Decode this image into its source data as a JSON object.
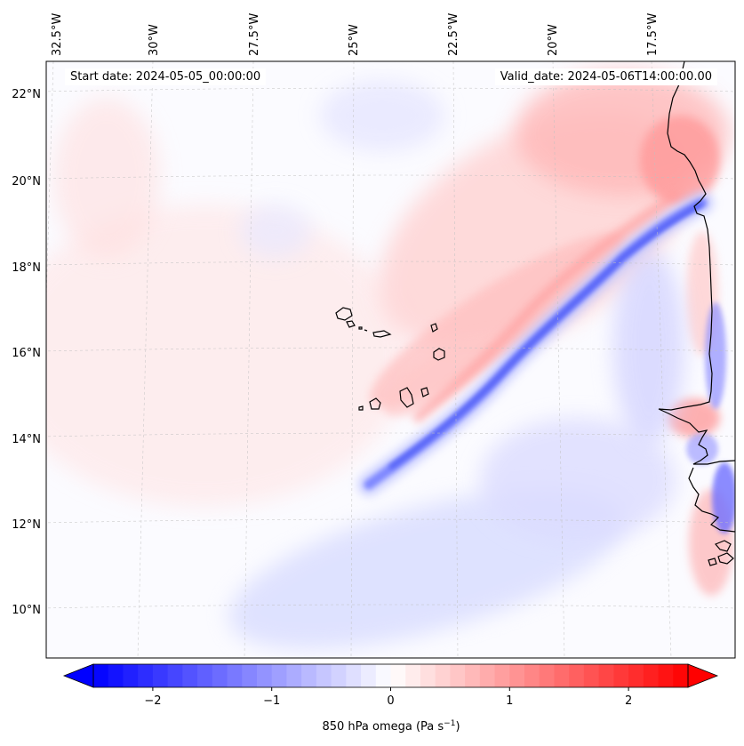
{
  "map": {
    "start_label": "Start date: 2024-05-05_00:00:00",
    "valid_label": "Valid_date: 2024-05-06T14:00:00.00",
    "lon_labels": [
      "32.5°W",
      "30°W",
      "27.5°W",
      "25°W",
      "22.5°W",
      "20°W",
      "17.5°W"
    ],
    "lat_labels": [
      "22°N",
      "20°N",
      "18°N",
      "16°N",
      "14°N",
      "12°N",
      "10°N"
    ],
    "field": "850 hPa omega",
    "islands": "Cabo Verde",
    "colors": {
      "negative": "#0000ff",
      "positive": "#ff0000",
      "neutral": "#ffffff"
    }
  },
  "colorbar": {
    "label_main": "850 hPa omega (Pa s",
    "label_exp": "−1",
    "label_end": ")",
    "ticks": [
      {
        "value": -2,
        "label": "−2"
      },
      {
        "value": -1,
        "label": "−1"
      },
      {
        "value": 0,
        "label": "0"
      },
      {
        "value": 1,
        "label": "1"
      },
      {
        "value": 2,
        "label": "2"
      }
    ],
    "range": [
      -2.5,
      2.5
    ],
    "extend": "both",
    "colormap": "bwr"
  }
}
